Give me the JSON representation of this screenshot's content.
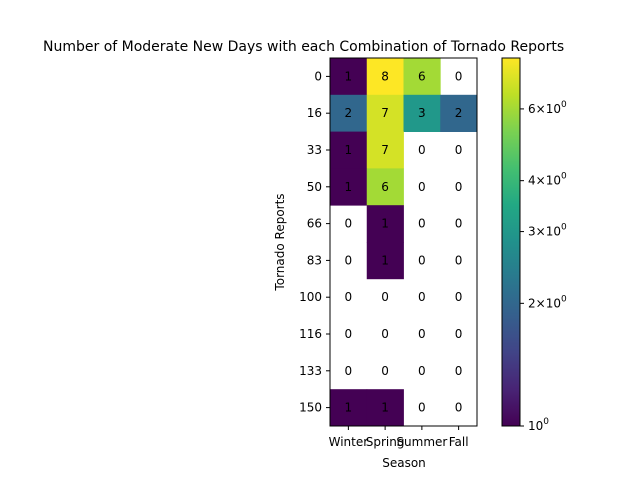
{
  "chart_data": {
    "type": "heatmap",
    "title": "Number of Moderate New Days with each Combination of Tornado Reports",
    "xlabel": "Season",
    "ylabel": "Tornado Reports",
    "x_categories": [
      "Winter",
      "Spring",
      "Summer",
      "Fall"
    ],
    "y_categories": [
      "0",
      "16",
      "33",
      "50",
      "66",
      "83",
      "100",
      "116",
      "133",
      "150"
    ],
    "values": [
      [
        1,
        8,
        6,
        0
      ],
      [
        2,
        7,
        3,
        2
      ],
      [
        1,
        7,
        0,
        0
      ],
      [
        1,
        6,
        0,
        0
      ],
      [
        0,
        1,
        0,
        0
      ],
      [
        0,
        1,
        0,
        0
      ],
      [
        0,
        0,
        0,
        0
      ],
      [
        0,
        0,
        0,
        0
      ],
      [
        0,
        0,
        0,
        0
      ],
      [
        1,
        1,
        0,
        0
      ]
    ],
    "color_scale": "log",
    "colormap": "viridis",
    "zero_cells": "blank",
    "colorbar": {
      "range": [
        1,
        8
      ],
      "tick_labels": [
        {
          "base": "10",
          "exp": "0",
          "value": 1
        },
        {
          "mant": "2",
          "base": "10",
          "exp": "0",
          "value": 2
        },
        {
          "mant": "3",
          "base": "10",
          "exp": "0",
          "value": 3
        },
        {
          "mant": "4",
          "base": "10",
          "exp": "0",
          "value": 4
        },
        {
          "mant": "6",
          "base": "10",
          "exp": "0",
          "value": 6
        }
      ]
    }
  }
}
